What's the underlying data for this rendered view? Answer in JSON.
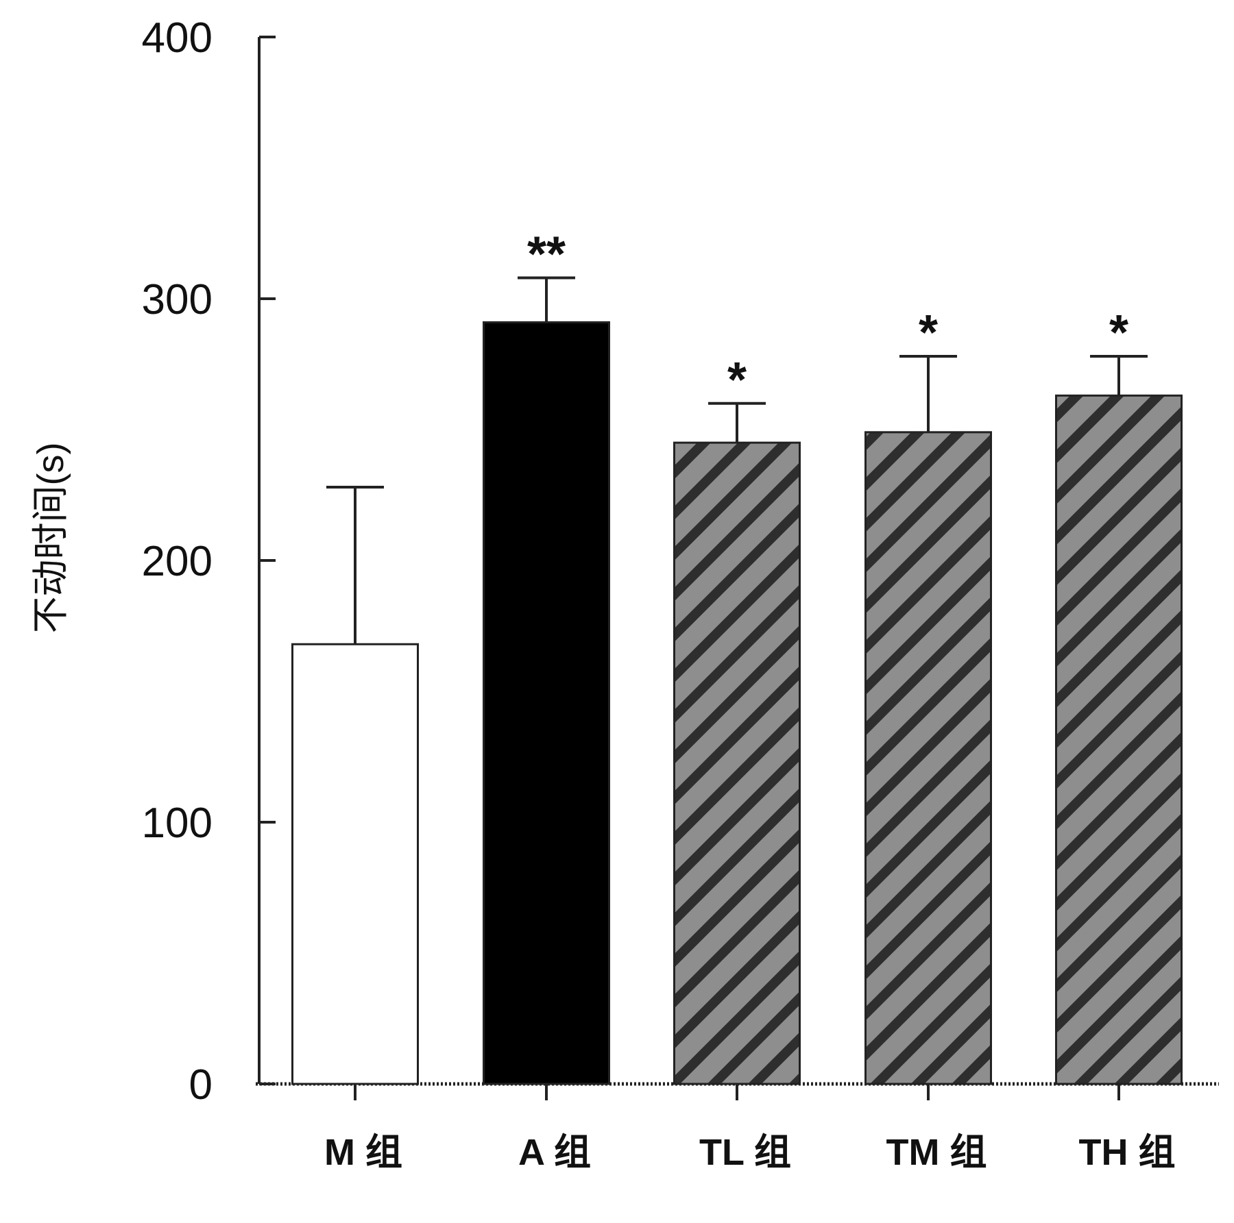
{
  "chart_data": {
    "type": "bar",
    "title": "",
    "xlabel": "",
    "ylabel": "不动时间(s)",
    "ylim": [
      0,
      400
    ],
    "yticks": [
      "0",
      "100",
      "200",
      "300",
      "400"
    ],
    "grid": false,
    "legend": "none",
    "categories": [
      "M 组",
      "A 组",
      "TL 组",
      "TM 组",
      "TH 组"
    ],
    "values": [
      168,
      291,
      245,
      249,
      263
    ],
    "error": [
      60,
      17,
      15,
      29,
      15
    ],
    "significance": [
      "",
      "**",
      "*",
      "*",
      "*"
    ],
    "fills": [
      "white",
      "black",
      "hatched-gray",
      "hatched-gray",
      "hatched-gray"
    ]
  },
  "colors": {
    "axis": "#222222",
    "white_bar": "#ffffff",
    "black_bar": "#000000",
    "hatch_base": "#8e8e8e",
    "hatch_stripe": "#2e2e2e"
  }
}
